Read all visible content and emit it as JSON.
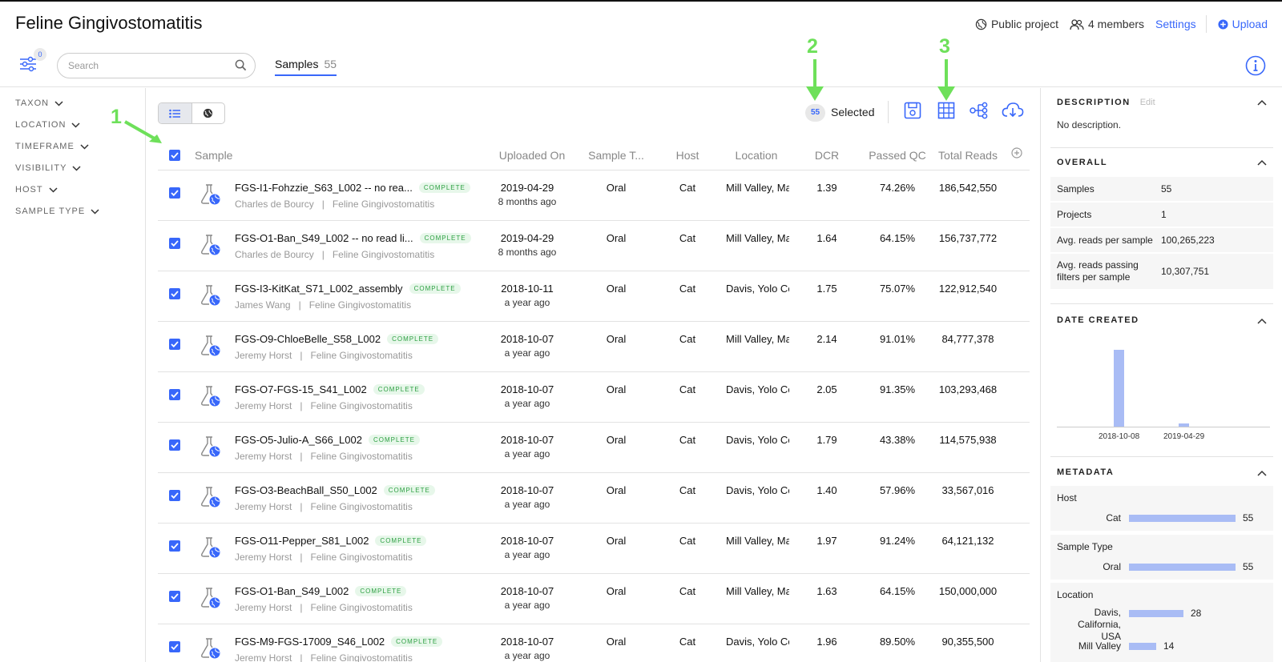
{
  "header": {
    "title": "Feline Gingivostomatitis",
    "public_label": "Public project",
    "members_label": "4 members",
    "settings_label": "Settings",
    "upload_label": "Upload"
  },
  "toolbar": {
    "filter_count": "0",
    "search_placeholder": "Search",
    "tab_label": "Samples",
    "tab_count": "55",
    "selected_count": "55",
    "selected_label": "Selected"
  },
  "annotations": [
    "1",
    "2",
    "3"
  ],
  "filters": [
    "TAXON",
    "LOCATION",
    "TIMEFRAME",
    "VISIBILITY",
    "HOST",
    "SAMPLE TYPE"
  ],
  "columns": {
    "sample": "Sample",
    "uploaded": "Uploaded On",
    "sample_type": "Sample T...",
    "host": "Host",
    "location": "Location",
    "dcr": "DCR",
    "passed_qc": "Passed QC",
    "total_reads": "Total Reads"
  },
  "rows": [
    {
      "name": "FGS-I1-Fohzzie_S63_L002 -- no rea...",
      "status": "COMPLETE",
      "user": "Charles de Bourcy",
      "project": "Feline Gingivostomatitis",
      "date": "2019-04-29",
      "ago": "8 months ago",
      "type": "Oral",
      "host": "Cat",
      "location": "Mill Valley, Ma",
      "dcr": "1.39",
      "qc": "74.26%",
      "reads": "186,542,550"
    },
    {
      "name": "FGS-O1-Ban_S49_L002 -- no read li...",
      "status": "COMPLETE",
      "user": "Charles de Bourcy",
      "project": "Feline Gingivostomatitis",
      "date": "2019-04-29",
      "ago": "8 months ago",
      "type": "Oral",
      "host": "Cat",
      "location": "Mill Valley, Ma",
      "dcr": "1.64",
      "qc": "64.15%",
      "reads": "156,737,772"
    },
    {
      "name": "FGS-I3-KitKat_S71_L002_assembly",
      "status": "COMPLETE",
      "user": "James Wang",
      "project": "Feline Gingivostomatitis",
      "date": "2018-10-11",
      "ago": "a year ago",
      "type": "Oral",
      "host": "Cat",
      "location": "Davis, Yolo Co",
      "dcr": "1.75",
      "qc": "75.07%",
      "reads": "122,912,540"
    },
    {
      "name": "FGS-O9-ChloeBelle_S58_L002",
      "status": "COMPLETE",
      "user": "Jeremy Horst",
      "project": "Feline Gingivostomatitis",
      "date": "2018-10-07",
      "ago": "a year ago",
      "type": "Oral",
      "host": "Cat",
      "location": "Mill Valley, Ma",
      "dcr": "2.14",
      "qc": "91.01%",
      "reads": "84,777,378"
    },
    {
      "name": "FGS-O7-FGS-15_S41_L002",
      "status": "COMPLETE",
      "user": "Jeremy Horst",
      "project": "Feline Gingivostomatitis",
      "date": "2018-10-07",
      "ago": "a year ago",
      "type": "Oral",
      "host": "Cat",
      "location": "Davis, Yolo Co",
      "dcr": "2.05",
      "qc": "91.35%",
      "reads": "103,293,468"
    },
    {
      "name": "FGS-O5-Julio-A_S66_L002",
      "status": "COMPLETE",
      "user": "Jeremy Horst",
      "project": "Feline Gingivostomatitis",
      "date": "2018-10-07",
      "ago": "a year ago",
      "type": "Oral",
      "host": "Cat",
      "location": "Davis, Yolo Co",
      "dcr": "1.79",
      "qc": "43.38%",
      "reads": "114,575,938"
    },
    {
      "name": "FGS-O3-BeachBall_S50_L002",
      "status": "COMPLETE",
      "user": "Jeremy Horst",
      "project": "Feline Gingivostomatitis",
      "date": "2018-10-07",
      "ago": "a year ago",
      "type": "Oral",
      "host": "Cat",
      "location": "Davis, Yolo Co",
      "dcr": "1.40",
      "qc": "57.96%",
      "reads": "33,567,016"
    },
    {
      "name": "FGS-O11-Pepper_S81_L002",
      "status": "COMPLETE",
      "user": "Jeremy Horst",
      "project": "Feline Gingivostomatitis",
      "date": "2018-10-07",
      "ago": "a year ago",
      "type": "Oral",
      "host": "Cat",
      "location": "Mill Valley, Ma",
      "dcr": "1.97",
      "qc": "91.24%",
      "reads": "64,121,132"
    },
    {
      "name": "FGS-O1-Ban_S49_L002",
      "status": "COMPLETE",
      "user": "Jeremy Horst",
      "project": "Feline Gingivostomatitis",
      "date": "2018-10-07",
      "ago": "a year ago",
      "type": "Oral",
      "host": "Cat",
      "location": "Mill Valley, Ma",
      "dcr": "1.63",
      "qc": "64.15%",
      "reads": "150,000,000"
    },
    {
      "name": "FGS-M9-FGS-17009_S46_L002",
      "status": "COMPLETE",
      "user": "Jeremy Horst",
      "project": "Feline Gingivostomatitis",
      "date": "2018-10-07",
      "ago": "a year ago",
      "type": "Oral",
      "host": "Cat",
      "location": "Davis, Yolo Co",
      "dcr": "1.96",
      "qc": "89.50%",
      "reads": "90,355,500"
    }
  ],
  "panel": {
    "description_title": "DESCRIPTION",
    "edit_label": "Edit",
    "description_text": "No description.",
    "overall_title": "OVERALL",
    "overall": [
      {
        "label": "Samples",
        "value": "55"
      },
      {
        "label": "Projects",
        "value": "1"
      },
      {
        "label": "Avg. reads per sample",
        "value": "100,265,223"
      },
      {
        "label": "Avg. reads passing filters per sample",
        "value": "10,307,751"
      }
    ],
    "date_title": "DATE CREATED",
    "metadata_title": "METADATA",
    "metadata": [
      {
        "heading": "Host",
        "items": [
          {
            "label": "Cat",
            "count": 55
          }
        ]
      },
      {
        "heading": "Sample Type",
        "items": [
          {
            "label": "Oral",
            "count": 55
          }
        ]
      },
      {
        "heading": "Location",
        "items": [
          {
            "label": "Davis, California, USA",
            "count": 28
          },
          {
            "label": "Mill Valley",
            "count": 14
          }
        ]
      }
    ]
  },
  "chart_data": {
    "type": "bar",
    "categories": [
      "2018-10-08",
      "2019-04-29"
    ],
    "values": [
      53,
      2
    ],
    "ylim": [
      0,
      55
    ],
    "bar_color": "#a9bcf5"
  },
  "colors": {
    "accent": "#3867fa",
    "complete": "#2ea043",
    "annotation": "#6ee05a"
  }
}
